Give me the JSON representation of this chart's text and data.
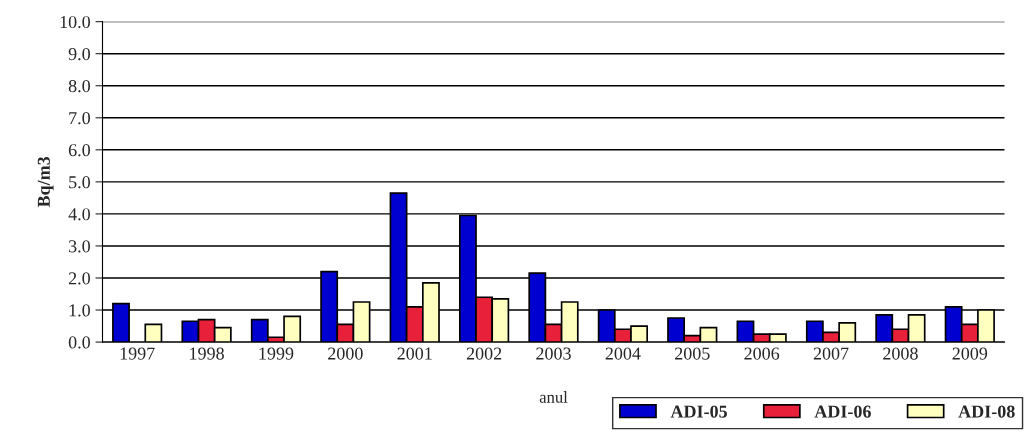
{
  "chart_data": {
    "type": "bar",
    "xlabel": "anul",
    "ylabel": "Bq/m3",
    "categories": [
      "1997",
      "1998",
      "1999",
      "2000",
      "2001",
      "2002",
      "2003",
      "2004",
      "2005",
      "2006",
      "2007",
      "2008",
      "2009"
    ],
    "series": [
      {
        "name": "ADI-05",
        "color": "#0000d0",
        "values": [
          1.2,
          0.65,
          0.7,
          2.2,
          4.65,
          3.95,
          2.15,
          1.0,
          0.75,
          0.65,
          0.65,
          0.85,
          1.1
        ]
      },
      {
        "name": "ADI-06",
        "color": "#e8203a",
        "values": [
          null,
          0.7,
          0.15,
          0.55,
          1.1,
          1.4,
          0.55,
          0.4,
          0.2,
          0.25,
          0.3,
          0.4,
          0.55
        ]
      },
      {
        "name": "ADI-08",
        "color": "#ffffc0",
        "values": [
          0.55,
          0.45,
          0.8,
          1.25,
          1.85,
          1.35,
          1.25,
          0.5,
          0.45,
          0.25,
          0.6,
          0.85,
          1.0
        ]
      }
    ],
    "ylim": [
      0,
      10
    ],
    "yticks": [
      {
        "value": 0,
        "label": "0.0"
      },
      {
        "value": 1,
        "label": "1.0"
      },
      {
        "value": 2,
        "label": "2.0"
      },
      {
        "value": 3,
        "label": "3.0"
      },
      {
        "value": 4,
        "label": "4.0"
      },
      {
        "value": 5,
        "label": "5.0"
      },
      {
        "value": 6,
        "label": "6.0"
      },
      {
        "value": 7,
        "label": "7.0"
      },
      {
        "value": 8,
        "label": "8.0"
      },
      {
        "value": 9,
        "label": "9.0"
      },
      {
        "value": 10,
        "label": "10.0"
      }
    ],
    "grid": "y",
    "legend": "bottom right"
  }
}
